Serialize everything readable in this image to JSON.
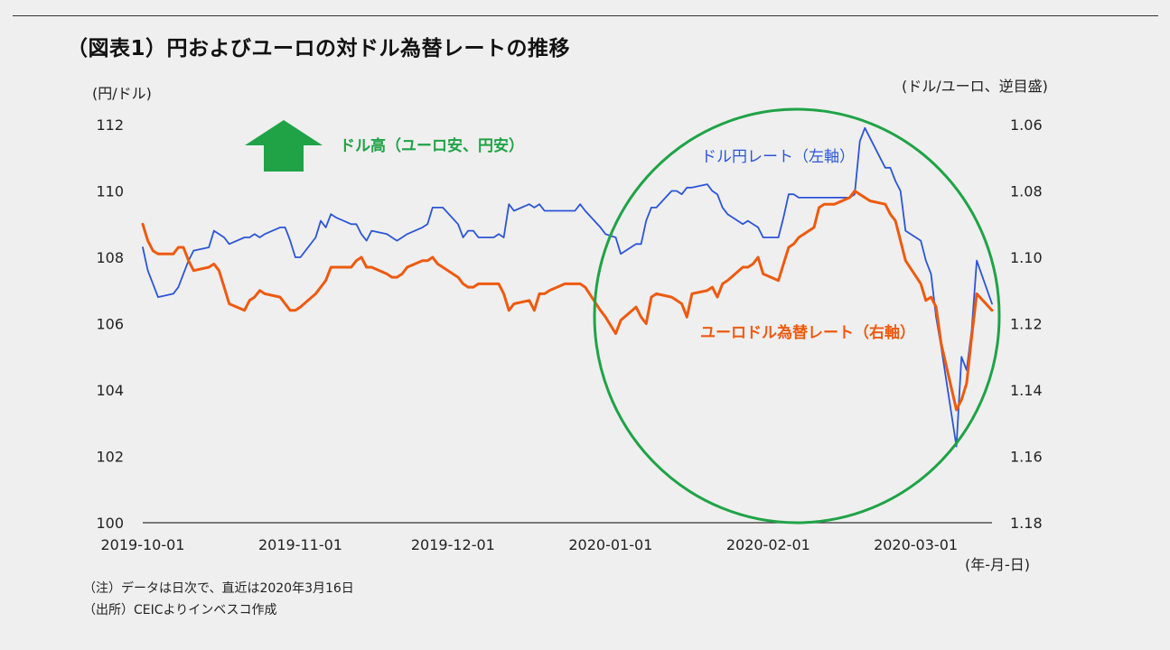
{
  "title": "（図表1）円およびユーロの対ドル為替レートの推移",
  "left_unit": "(円/ドル)",
  "right_unit": "(ドル/ユーロ、逆目盛)",
  "date_unit": "(年-月-日)",
  "notes": {
    "note1": "（注）データは日次で、直近は2020年3月16日",
    "note2": "（出所）CEICよりインベスコ作成"
  },
  "annotations": {
    "dollar_strong": "ドル高（ユーロ安、円安）",
    "usdjpy_label": "ドル円レート（左軸）",
    "eurusd_label": "ユーロドル為替レート（右軸）"
  },
  "colors": {
    "usdjpy": "#2c55d6",
    "eurusd": "#ee5a0f",
    "highlight_circle": "#1fa346",
    "arrow": "#1fa346"
  },
  "chart_data": {
    "type": "line",
    "x_start": "2019-10-01",
    "x_end": "2020-03-16",
    "x_ticks": [
      "2019-10-01",
      "2019-11-01",
      "2019-12-01",
      "2020-01-01",
      "2020-02-01",
      "2020-03-01"
    ],
    "y_left": {
      "min": 100,
      "max": 112,
      "ticks": [
        "112",
        "110",
        "108",
        "106",
        "104",
        "102",
        "100"
      ]
    },
    "y_right": {
      "min": 1.06,
      "max": 1.18,
      "inverted": true,
      "ticks": [
        "1.06",
        "1.08",
        "1.10",
        "1.12",
        "1.14",
        "1.16",
        "1.18"
      ]
    },
    "series": [
      {
        "name": "ドル円レート（左軸）",
        "axis": "left",
        "points": [
          [
            "2019-10-01",
            108.3
          ],
          [
            "2019-10-02",
            107.6
          ],
          [
            "2019-10-03",
            107.2
          ],
          [
            "2019-10-04",
            106.8
          ],
          [
            "2019-10-07",
            106.9
          ],
          [
            "2019-10-08",
            107.1
          ],
          [
            "2019-10-09",
            107.5
          ],
          [
            "2019-10-10",
            107.9
          ],
          [
            "2019-10-11",
            108.2
          ],
          [
            "2019-10-14",
            108.3
          ],
          [
            "2019-10-15",
            108.8
          ],
          [
            "2019-10-16",
            108.7
          ],
          [
            "2019-10-17",
            108.6
          ],
          [
            "2019-10-18",
            108.4
          ],
          [
            "2019-10-21",
            108.6
          ],
          [
            "2019-10-22",
            108.6
          ],
          [
            "2019-10-23",
            108.7
          ],
          [
            "2019-10-24",
            108.6
          ],
          [
            "2019-10-25",
            108.7
          ],
          [
            "2019-10-28",
            108.9
          ],
          [
            "2019-10-29",
            108.9
          ],
          [
            "2019-10-30",
            108.5
          ],
          [
            "2019-10-31",
            108.0
          ],
          [
            "2019-11-01",
            108.0
          ],
          [
            "2019-11-04",
            108.6
          ],
          [
            "2019-11-05",
            109.1
          ],
          [
            "2019-11-06",
            108.9
          ],
          [
            "2019-11-07",
            109.3
          ],
          [
            "2019-11-08",
            109.2
          ],
          [
            "2019-11-11",
            109.0
          ],
          [
            "2019-11-12",
            109.0
          ],
          [
            "2019-11-13",
            108.7
          ],
          [
            "2019-11-14",
            108.5
          ],
          [
            "2019-11-15",
            108.8
          ],
          [
            "2019-11-18",
            108.7
          ],
          [
            "2019-11-19",
            108.6
          ],
          [
            "2019-11-20",
            108.5
          ],
          [
            "2019-11-21",
            108.6
          ],
          [
            "2019-11-22",
            108.7
          ],
          [
            "2019-11-25",
            108.9
          ],
          [
            "2019-11-26",
            109.0
          ],
          [
            "2019-11-27",
            109.5
          ],
          [
            "2019-11-28",
            109.5
          ],
          [
            "2019-11-29",
            109.5
          ],
          [
            "2019-12-02",
            109.0
          ],
          [
            "2019-12-03",
            108.6
          ],
          [
            "2019-12-04",
            108.8
          ],
          [
            "2019-12-05",
            108.8
          ],
          [
            "2019-12-06",
            108.6
          ],
          [
            "2019-12-09",
            108.6
          ],
          [
            "2019-12-10",
            108.7
          ],
          [
            "2019-12-11",
            108.6
          ],
          [
            "2019-12-12",
            109.6
          ],
          [
            "2019-12-13",
            109.4
          ],
          [
            "2019-12-16",
            109.6
          ],
          [
            "2019-12-17",
            109.5
          ],
          [
            "2019-12-18",
            109.6
          ],
          [
            "2019-12-19",
            109.4
          ],
          [
            "2019-12-20",
            109.4
          ],
          [
            "2019-12-23",
            109.4
          ],
          [
            "2019-12-24",
            109.4
          ],
          [
            "2019-12-25",
            109.4
          ],
          [
            "2019-12-26",
            109.6
          ],
          [
            "2019-12-27",
            109.4
          ],
          [
            "2019-12-30",
            108.9
          ],
          [
            "2019-12-31",
            108.7
          ],
          [
            "2020-01-02",
            108.6
          ],
          [
            "2020-01-03",
            108.1
          ],
          [
            "2020-01-06",
            108.4
          ],
          [
            "2020-01-07",
            108.4
          ],
          [
            "2020-01-08",
            109.1
          ],
          [
            "2020-01-09",
            109.5
          ],
          [
            "2020-01-10",
            109.5
          ],
          [
            "2020-01-13",
            110.0
          ],
          [
            "2020-01-14",
            110.0
          ],
          [
            "2020-01-15",
            109.9
          ],
          [
            "2020-01-16",
            110.1
          ],
          [
            "2020-01-17",
            110.1
          ],
          [
            "2020-01-20",
            110.2
          ],
          [
            "2020-01-21",
            110.0
          ],
          [
            "2020-01-22",
            109.9
          ],
          [
            "2020-01-23",
            109.5
          ],
          [
            "2020-01-24",
            109.3
          ],
          [
            "2020-01-27",
            109.0
          ],
          [
            "2020-01-28",
            109.1
          ],
          [
            "2020-01-29",
            109.0
          ],
          [
            "2020-01-30",
            108.9
          ],
          [
            "2020-01-31",
            108.6
          ],
          [
            "2020-02-03",
            108.6
          ],
          [
            "2020-02-04",
            109.2
          ],
          [
            "2020-02-05",
            109.9
          ],
          [
            "2020-02-06",
            109.9
          ],
          [
            "2020-02-07",
            109.8
          ],
          [
            "2020-02-10",
            109.8
          ],
          [
            "2020-02-11",
            109.8
          ],
          [
            "2020-02-12",
            109.8
          ],
          [
            "2020-02-13",
            109.8
          ],
          [
            "2020-02-14",
            109.8
          ],
          [
            "2020-02-17",
            109.8
          ],
          [
            "2020-02-18",
            109.9
          ],
          [
            "2020-02-19",
            111.5
          ],
          [
            "2020-02-20",
            111.9
          ],
          [
            "2020-02-21",
            111.6
          ],
          [
            "2020-02-24",
            110.7
          ],
          [
            "2020-02-25",
            110.7
          ],
          [
            "2020-02-26",
            110.3
          ],
          [
            "2020-02-27",
            110.0
          ],
          [
            "2020-02-28",
            108.8
          ],
          [
            "2020-03-02",
            108.5
          ],
          [
            "2020-03-03",
            107.9
          ],
          [
            "2020-03-04",
            107.5
          ],
          [
            "2020-03-05",
            106.2
          ],
          [
            "2020-03-06",
            105.3
          ],
          [
            "2020-03-09",
            102.3
          ],
          [
            "2020-03-10",
            105.0
          ],
          [
            "2020-03-11",
            104.6
          ],
          [
            "2020-03-12",
            105.8
          ],
          [
            "2020-03-13",
            107.9
          ],
          [
            "2020-03-16",
            106.6
          ]
        ]
      },
      {
        "name": "ユーロドル為替レート（右軸）",
        "axis": "right",
        "points": [
          [
            "2019-10-01",
            1.09
          ],
          [
            "2019-10-02",
            1.095
          ],
          [
            "2019-10-03",
            1.098
          ],
          [
            "2019-10-04",
            1.099
          ],
          [
            "2019-10-07",
            1.099
          ],
          [
            "2019-10-08",
            1.097
          ],
          [
            "2019-10-09",
            1.097
          ],
          [
            "2019-10-10",
            1.101
          ],
          [
            "2019-10-11",
            1.104
          ],
          [
            "2019-10-14",
            1.103
          ],
          [
            "2019-10-15",
            1.102
          ],
          [
            "2019-10-16",
            1.104
          ],
          [
            "2019-10-17",
            1.109
          ],
          [
            "2019-10-18",
            1.114
          ],
          [
            "2019-10-21",
            1.116
          ],
          [
            "2019-10-22",
            1.113
          ],
          [
            "2019-10-23",
            1.112
          ],
          [
            "2019-10-24",
            1.11
          ],
          [
            "2019-10-25",
            1.111
          ],
          [
            "2019-10-28",
            1.112
          ],
          [
            "2019-10-29",
            1.114
          ],
          [
            "2019-10-30",
            1.116
          ],
          [
            "2019-10-31",
            1.116
          ],
          [
            "2019-11-01",
            1.115
          ],
          [
            "2019-11-04",
            1.111
          ],
          [
            "2019-11-05",
            1.109
          ],
          [
            "2019-11-06",
            1.107
          ],
          [
            "2019-11-07",
            1.103
          ],
          [
            "2019-11-08",
            1.103
          ],
          [
            "2019-11-11",
            1.103
          ],
          [
            "2019-11-12",
            1.101
          ],
          [
            "2019-11-13",
            1.1
          ],
          [
            "2019-11-14",
            1.103
          ],
          [
            "2019-11-15",
            1.103
          ],
          [
            "2019-11-18",
            1.105
          ],
          [
            "2019-11-19",
            1.106
          ],
          [
            "2019-11-20",
            1.106
          ],
          [
            "2019-11-21",
            1.105
          ],
          [
            "2019-11-22",
            1.103
          ],
          [
            "2019-11-25",
            1.101
          ],
          [
            "2019-11-26",
            1.101
          ],
          [
            "2019-11-27",
            1.1
          ],
          [
            "2019-11-28",
            1.102
          ],
          [
            "2019-11-29",
            1.103
          ],
          [
            "2019-12-02",
            1.106
          ],
          [
            "2019-12-03",
            1.108
          ],
          [
            "2019-12-04",
            1.109
          ],
          [
            "2019-12-05",
            1.109
          ],
          [
            "2019-12-06",
            1.108
          ],
          [
            "2019-12-09",
            1.108
          ],
          [
            "2019-12-10",
            1.108
          ],
          [
            "2019-12-11",
            1.111
          ],
          [
            "2019-12-12",
            1.116
          ],
          [
            "2019-12-13",
            1.114
          ],
          [
            "2019-12-16",
            1.113
          ],
          [
            "2019-12-17",
            1.116
          ],
          [
            "2019-12-18",
            1.111
          ],
          [
            "2019-12-19",
            1.111
          ],
          [
            "2019-12-20",
            1.11
          ],
          [
            "2019-12-23",
            1.108
          ],
          [
            "2019-12-24",
            1.108
          ],
          [
            "2019-12-25",
            1.108
          ],
          [
            "2019-12-26",
            1.108
          ],
          [
            "2019-12-27",
            1.109
          ],
          [
            "2019-12-30",
            1.116
          ],
          [
            "2019-12-31",
            1.118
          ],
          [
            "2020-01-02",
            1.123
          ],
          [
            "2020-01-03",
            1.119
          ],
          [
            "2020-01-06",
            1.115
          ],
          [
            "2020-01-07",
            1.118
          ],
          [
            "2020-01-08",
            1.12
          ],
          [
            "2020-01-09",
            1.112
          ],
          [
            "2020-01-10",
            1.111
          ],
          [
            "2020-01-13",
            1.112
          ],
          [
            "2020-01-14",
            1.113
          ],
          [
            "2020-01-15",
            1.114
          ],
          [
            "2020-01-16",
            1.118
          ],
          [
            "2020-01-17",
            1.111
          ],
          [
            "2020-01-20",
            1.11
          ],
          [
            "2020-01-21",
            1.109
          ],
          [
            "2020-01-22",
            1.112
          ],
          [
            "2020-01-23",
            1.108
          ],
          [
            "2020-01-24",
            1.107
          ],
          [
            "2020-01-27",
            1.103
          ],
          [
            "2020-01-28",
            1.103
          ],
          [
            "2020-01-29",
            1.102
          ],
          [
            "2020-01-30",
            1.1
          ],
          [
            "2020-01-31",
            1.105
          ],
          [
            "2020-02-03",
            1.107
          ],
          [
            "2020-02-04",
            1.102
          ],
          [
            "2020-02-05",
            1.097
          ],
          [
            "2020-02-06",
            1.096
          ],
          [
            "2020-02-07",
            1.094
          ],
          [
            "2020-02-10",
            1.091
          ],
          [
            "2020-02-11",
            1.085
          ],
          [
            "2020-02-12",
            1.084
          ],
          [
            "2020-02-13",
            1.084
          ],
          [
            "2020-02-14",
            1.084
          ],
          [
            "2020-02-17",
            1.082
          ],
          [
            "2020-02-18",
            1.08
          ],
          [
            "2020-02-19",
            1.081
          ],
          [
            "2020-02-20",
            1.082
          ],
          [
            "2020-02-21",
            1.083
          ],
          [
            "2020-02-24",
            1.084
          ],
          [
            "2020-02-25",
            1.087
          ],
          [
            "2020-02-26",
            1.089
          ],
          [
            "2020-02-27",
            1.095
          ],
          [
            "2020-02-28",
            1.101
          ],
          [
            "2020-03-02",
            1.108
          ],
          [
            "2020-03-03",
            1.113
          ],
          [
            "2020-03-04",
            1.112
          ],
          [
            "2020-03-05",
            1.115
          ],
          [
            "2020-03-06",
            1.126
          ],
          [
            "2020-03-09",
            1.146
          ],
          [
            "2020-03-10",
            1.143
          ],
          [
            "2020-03-11",
            1.138
          ],
          [
            "2020-03-12",
            1.124
          ],
          [
            "2020-03-13",
            1.111
          ],
          [
            "2020-03-16",
            1.116
          ]
        ]
      }
    ],
    "highlight": "2020-01 to 2020-03 circled"
  }
}
